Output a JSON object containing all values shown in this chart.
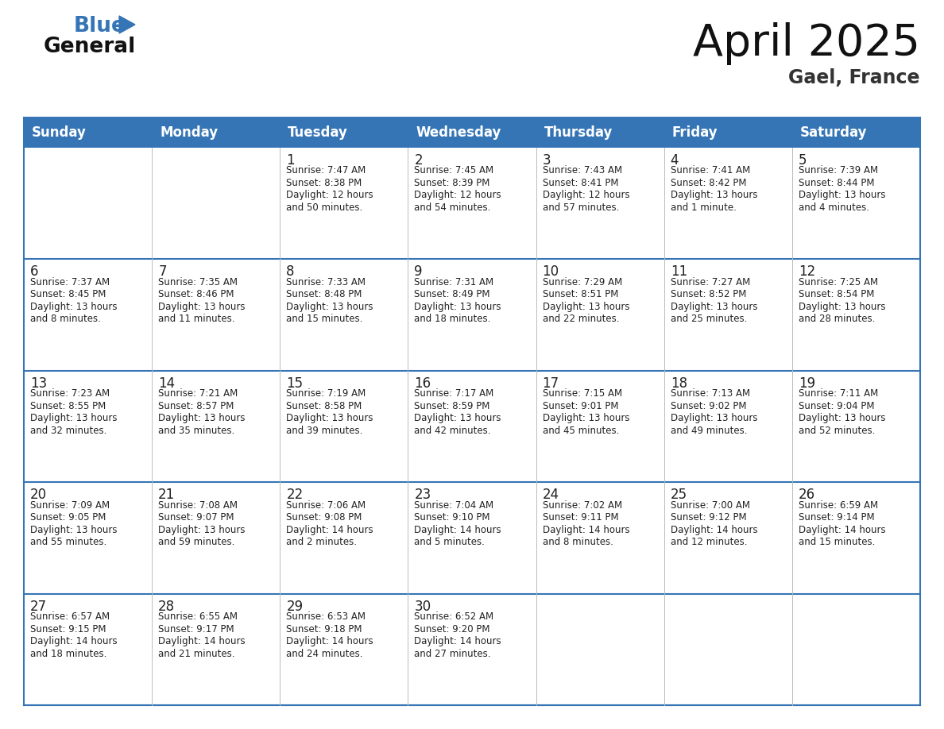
{
  "title": "April 2025",
  "subtitle": "Gael, France",
  "header_bg_color": "#3575b5",
  "header_text_color": "#ffffff",
  "row_line_color": "#3575b5",
  "grid_line_color": "#bbbbbb",
  "text_color": "#222222",
  "days_of_week": [
    "Sunday",
    "Monday",
    "Tuesday",
    "Wednesday",
    "Thursday",
    "Friday",
    "Saturday"
  ],
  "calendar": [
    [
      {
        "day": "",
        "sunrise": "",
        "sunset": "",
        "daylight": ""
      },
      {
        "day": "",
        "sunrise": "",
        "sunset": "",
        "daylight": ""
      },
      {
        "day": "1",
        "sunrise": "Sunrise: 7:47 AM",
        "sunset": "Sunset: 8:38 PM",
        "daylight": "Daylight: 12 hours\nand 50 minutes."
      },
      {
        "day": "2",
        "sunrise": "Sunrise: 7:45 AM",
        "sunset": "Sunset: 8:39 PM",
        "daylight": "Daylight: 12 hours\nand 54 minutes."
      },
      {
        "day": "3",
        "sunrise": "Sunrise: 7:43 AM",
        "sunset": "Sunset: 8:41 PM",
        "daylight": "Daylight: 12 hours\nand 57 minutes."
      },
      {
        "day": "4",
        "sunrise": "Sunrise: 7:41 AM",
        "sunset": "Sunset: 8:42 PM",
        "daylight": "Daylight: 13 hours\nand 1 minute."
      },
      {
        "day": "5",
        "sunrise": "Sunrise: 7:39 AM",
        "sunset": "Sunset: 8:44 PM",
        "daylight": "Daylight: 13 hours\nand 4 minutes."
      }
    ],
    [
      {
        "day": "6",
        "sunrise": "Sunrise: 7:37 AM",
        "sunset": "Sunset: 8:45 PM",
        "daylight": "Daylight: 13 hours\nand 8 minutes."
      },
      {
        "day": "7",
        "sunrise": "Sunrise: 7:35 AM",
        "sunset": "Sunset: 8:46 PM",
        "daylight": "Daylight: 13 hours\nand 11 minutes."
      },
      {
        "day": "8",
        "sunrise": "Sunrise: 7:33 AM",
        "sunset": "Sunset: 8:48 PM",
        "daylight": "Daylight: 13 hours\nand 15 minutes."
      },
      {
        "day": "9",
        "sunrise": "Sunrise: 7:31 AM",
        "sunset": "Sunset: 8:49 PM",
        "daylight": "Daylight: 13 hours\nand 18 minutes."
      },
      {
        "day": "10",
        "sunrise": "Sunrise: 7:29 AM",
        "sunset": "Sunset: 8:51 PM",
        "daylight": "Daylight: 13 hours\nand 22 minutes."
      },
      {
        "day": "11",
        "sunrise": "Sunrise: 7:27 AM",
        "sunset": "Sunset: 8:52 PM",
        "daylight": "Daylight: 13 hours\nand 25 minutes."
      },
      {
        "day": "12",
        "sunrise": "Sunrise: 7:25 AM",
        "sunset": "Sunset: 8:54 PM",
        "daylight": "Daylight: 13 hours\nand 28 minutes."
      }
    ],
    [
      {
        "day": "13",
        "sunrise": "Sunrise: 7:23 AM",
        "sunset": "Sunset: 8:55 PM",
        "daylight": "Daylight: 13 hours\nand 32 minutes."
      },
      {
        "day": "14",
        "sunrise": "Sunrise: 7:21 AM",
        "sunset": "Sunset: 8:57 PM",
        "daylight": "Daylight: 13 hours\nand 35 minutes."
      },
      {
        "day": "15",
        "sunrise": "Sunrise: 7:19 AM",
        "sunset": "Sunset: 8:58 PM",
        "daylight": "Daylight: 13 hours\nand 39 minutes."
      },
      {
        "day": "16",
        "sunrise": "Sunrise: 7:17 AM",
        "sunset": "Sunset: 8:59 PM",
        "daylight": "Daylight: 13 hours\nand 42 minutes."
      },
      {
        "day": "17",
        "sunrise": "Sunrise: 7:15 AM",
        "sunset": "Sunset: 9:01 PM",
        "daylight": "Daylight: 13 hours\nand 45 minutes."
      },
      {
        "day": "18",
        "sunrise": "Sunrise: 7:13 AM",
        "sunset": "Sunset: 9:02 PM",
        "daylight": "Daylight: 13 hours\nand 49 minutes."
      },
      {
        "day": "19",
        "sunrise": "Sunrise: 7:11 AM",
        "sunset": "Sunset: 9:04 PM",
        "daylight": "Daylight: 13 hours\nand 52 minutes."
      }
    ],
    [
      {
        "day": "20",
        "sunrise": "Sunrise: 7:09 AM",
        "sunset": "Sunset: 9:05 PM",
        "daylight": "Daylight: 13 hours\nand 55 minutes."
      },
      {
        "day": "21",
        "sunrise": "Sunrise: 7:08 AM",
        "sunset": "Sunset: 9:07 PM",
        "daylight": "Daylight: 13 hours\nand 59 minutes."
      },
      {
        "day": "22",
        "sunrise": "Sunrise: 7:06 AM",
        "sunset": "Sunset: 9:08 PM",
        "daylight": "Daylight: 14 hours\nand 2 minutes."
      },
      {
        "day": "23",
        "sunrise": "Sunrise: 7:04 AM",
        "sunset": "Sunset: 9:10 PM",
        "daylight": "Daylight: 14 hours\nand 5 minutes."
      },
      {
        "day": "24",
        "sunrise": "Sunrise: 7:02 AM",
        "sunset": "Sunset: 9:11 PM",
        "daylight": "Daylight: 14 hours\nand 8 minutes."
      },
      {
        "day": "25",
        "sunrise": "Sunrise: 7:00 AM",
        "sunset": "Sunset: 9:12 PM",
        "daylight": "Daylight: 14 hours\nand 12 minutes."
      },
      {
        "day": "26",
        "sunrise": "Sunrise: 6:59 AM",
        "sunset": "Sunset: 9:14 PM",
        "daylight": "Daylight: 14 hours\nand 15 minutes."
      }
    ],
    [
      {
        "day": "27",
        "sunrise": "Sunrise: 6:57 AM",
        "sunset": "Sunset: 9:15 PM",
        "daylight": "Daylight: 14 hours\nand 18 minutes."
      },
      {
        "day": "28",
        "sunrise": "Sunrise: 6:55 AM",
        "sunset": "Sunset: 9:17 PM",
        "daylight": "Daylight: 14 hours\nand 21 minutes."
      },
      {
        "day": "29",
        "sunrise": "Sunrise: 6:53 AM",
        "sunset": "Sunset: 9:18 PM",
        "daylight": "Daylight: 14 hours\nand 24 minutes."
      },
      {
        "day": "30",
        "sunrise": "Sunrise: 6:52 AM",
        "sunset": "Sunset: 9:20 PM",
        "daylight": "Daylight: 14 hours\nand 27 minutes."
      },
      {
        "day": "",
        "sunrise": "",
        "sunset": "",
        "daylight": ""
      },
      {
        "day": "",
        "sunrise": "",
        "sunset": "",
        "daylight": ""
      },
      {
        "day": "",
        "sunrise": "",
        "sunset": "",
        "daylight": ""
      }
    ]
  ]
}
